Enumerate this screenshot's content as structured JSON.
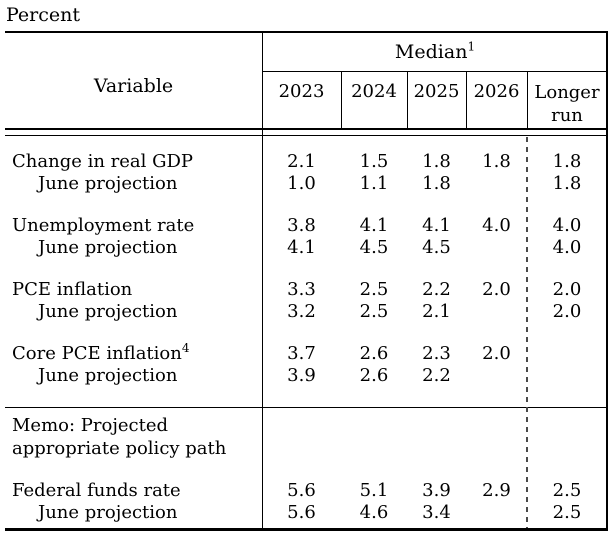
{
  "unit_label": "Percent",
  "header": {
    "variable": "Variable",
    "median": "Median",
    "median_sup": "1",
    "years": [
      "2023",
      "2024",
      "2025",
      "2026"
    ],
    "longer_run": "Longer run"
  },
  "memo": {
    "line1": "Memo: Projected",
    "line2": "appropriate policy path"
  },
  "rows": [
    {
      "label": "Change in real GDP",
      "v": [
        "2.1",
        "1.5",
        "1.8",
        "1.8",
        "1.8"
      ]
    },
    {
      "label": "June projection",
      "v": [
        "1.0",
        "1.1",
        "1.8",
        "",
        "1.8"
      ]
    },
    {
      "label": "Unemployment rate",
      "v": [
        "3.8",
        "4.1",
        "4.1",
        "4.0",
        "4.0"
      ]
    },
    {
      "label": "June projection",
      "v": [
        "4.1",
        "4.5",
        "4.5",
        "",
        "4.0"
      ]
    },
    {
      "label": "PCE inflation",
      "v": [
        "3.3",
        "2.5",
        "2.2",
        "2.0",
        "2.0"
      ]
    },
    {
      "label": "June projection",
      "v": [
        "3.2",
        "2.5",
        "2.1",
        "",
        "2.0"
      ]
    },
    {
      "label": "Core PCE inflation",
      "sup": "4",
      "v": [
        "3.7",
        "2.6",
        "2.3",
        "2.0",
        ""
      ]
    },
    {
      "label": "June projection",
      "v": [
        "3.9",
        "2.6",
        "2.2",
        "",
        ""
      ]
    },
    {
      "label": "Federal funds rate",
      "v": [
        "5.6",
        "5.1",
        "3.9",
        "2.9",
        "2.5"
      ]
    },
    {
      "label": "June projection",
      "v": [
        "5.6",
        "4.6",
        "3.4",
        "",
        "2.5"
      ]
    }
  ],
  "colors": {
    "background": "#ffffff",
    "text": "#000000",
    "rules": "#000000",
    "dashed_divider": "#4a4a4a"
  }
}
